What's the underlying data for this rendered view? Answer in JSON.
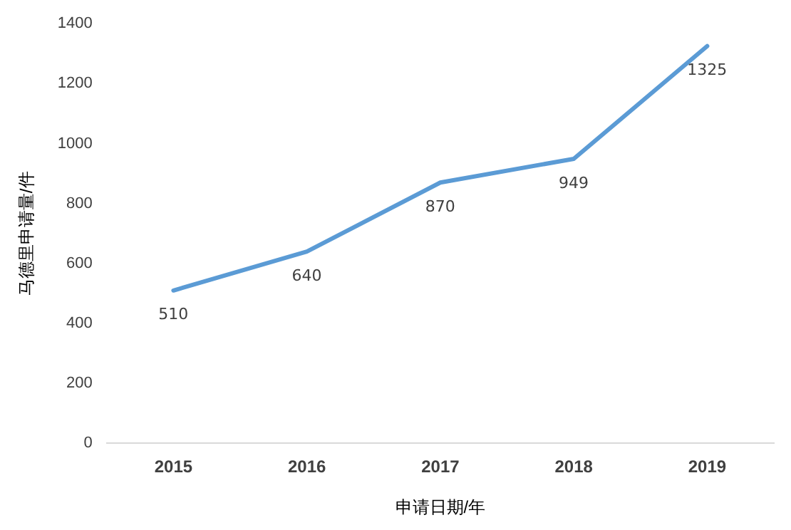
{
  "chart_data": {
    "type": "line",
    "xlabel": "申请日期/年",
    "ylabel": "马德里申请量/件",
    "categories": [
      "2015",
      "2016",
      "2017",
      "2018",
      "2019"
    ],
    "series": [
      {
        "color": "#5b9bd5",
        "values": [
          510,
          640,
          870,
          949,
          1325
        ]
      }
    ],
    "ylim": [
      0,
      1400
    ],
    "yticks": [
      0,
      200,
      400,
      600,
      800,
      1000,
      1200,
      1400
    ],
    "grid": false,
    "legend": false,
    "marker": "none",
    "line_style": "solid",
    "data_labels": true
  }
}
